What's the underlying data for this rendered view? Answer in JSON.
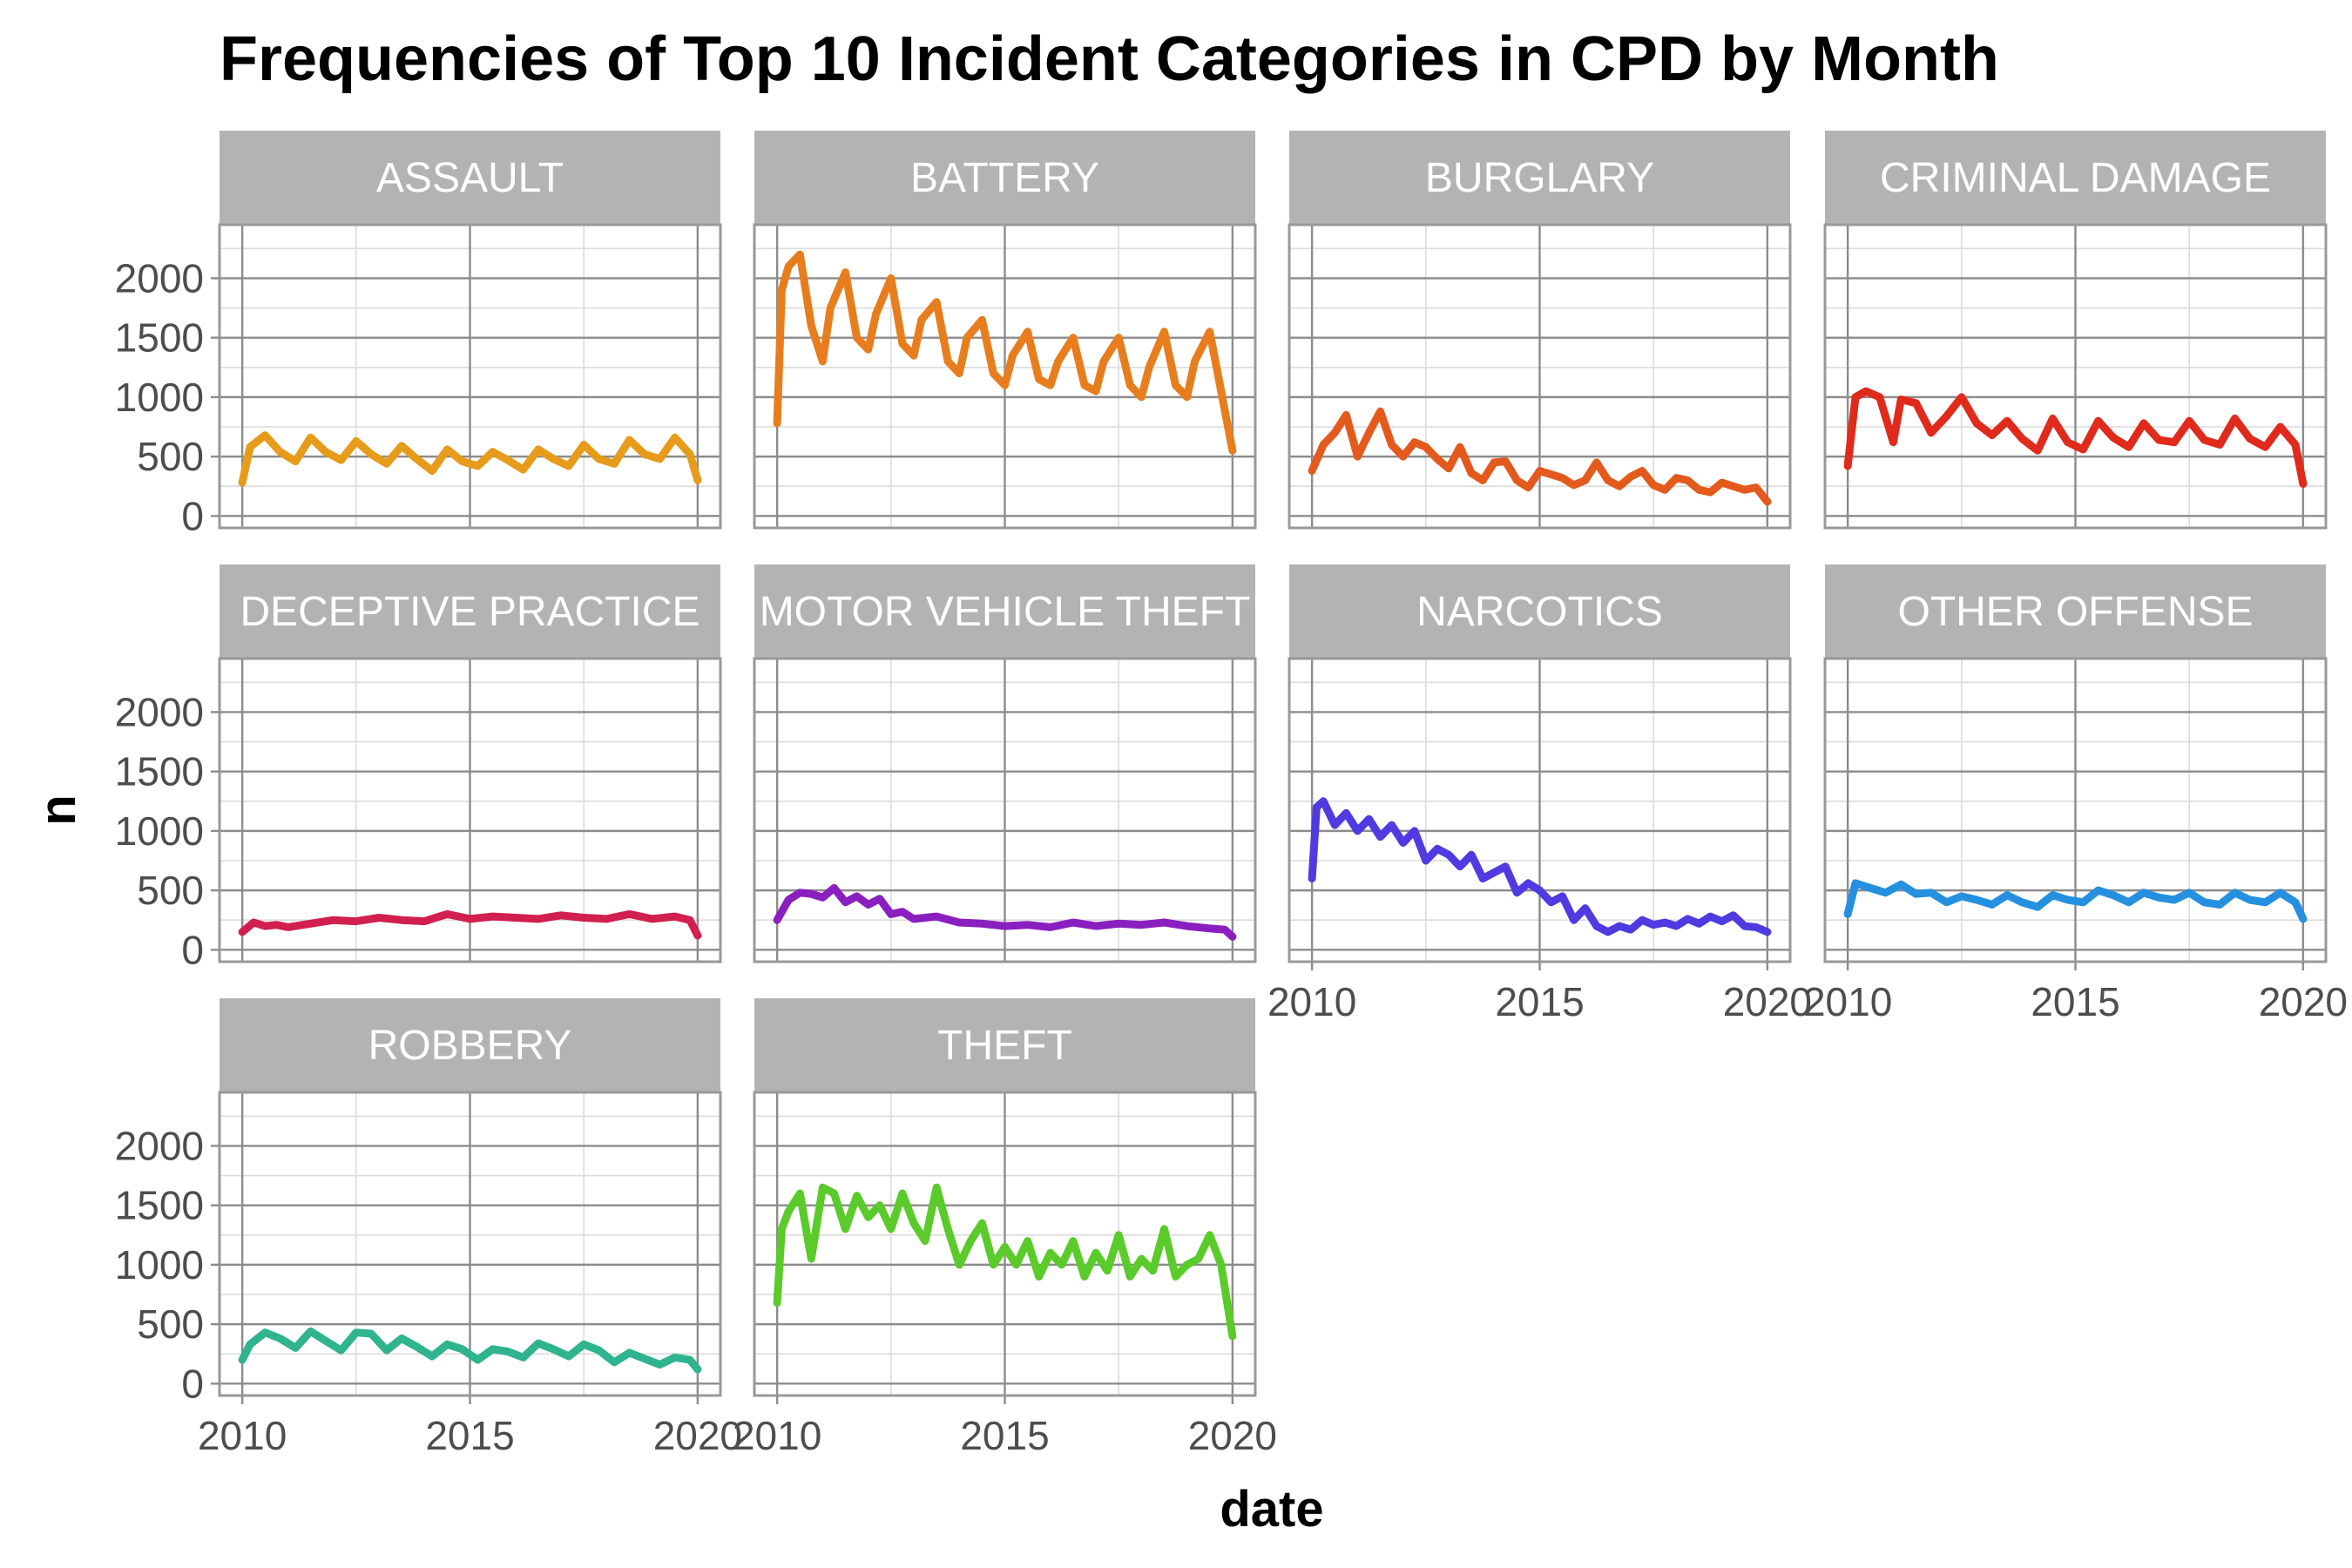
{
  "chart_data": {
    "type": "line",
    "title": "Frequencies of Top 10 Incident Categories in CPD by Month",
    "xlabel": "date",
    "ylabel": "n",
    "xlim": [
      2009.5,
      2020.5
    ],
    "ylim": [
      -100,
      2450
    ],
    "x_ticks": [
      2010,
      2015,
      2020
    ],
    "y_ticks": [
      0,
      500,
      1000,
      1500,
      2000
    ],
    "grid": true,
    "legend": "none",
    "panels": [
      {
        "name": "ASSAULT",
        "color": "#E69B1A",
        "x": [
          2010.0,
          2010.17,
          2010.5,
          2010.83,
          2011.17,
          2011.5,
          2011.83,
          2012.17,
          2012.5,
          2012.83,
          2013.17,
          2013.5,
          2013.83,
          2014.17,
          2014.5,
          2014.83,
          2015.17,
          2015.5,
          2015.83,
          2016.17,
          2016.5,
          2016.83,
          2017.17,
          2017.5,
          2017.83,
          2018.17,
          2018.5,
          2018.83,
          2019.17,
          2019.5,
          2019.83,
          2020.0
        ],
        "y": [
          280,
          580,
          680,
          540,
          460,
          660,
          540,
          470,
          630,
          520,
          440,
          590,
          480,
          380,
          560,
          460,
          420,
          540,
          470,
          390,
          560,
          480,
          420,
          600,
          480,
          440,
          640,
          520,
          480,
          660,
          520,
          300
        ]
      },
      {
        "name": "BATTERY",
        "color": "#E87D1E",
        "x": [
          2010.0,
          2010.1,
          2010.25,
          2010.5,
          2010.75,
          2011.0,
          2011.17,
          2011.5,
          2011.75,
          2012.0,
          2012.17,
          2012.5,
          2012.75,
          2013.0,
          2013.17,
          2013.5,
          2013.75,
          2014.0,
          2014.17,
          2014.5,
          2014.75,
          2015.0,
          2015.17,
          2015.5,
          2015.75,
          2016.0,
          2016.17,
          2016.5,
          2016.75,
          2017.0,
          2017.17,
          2017.5,
          2017.75,
          2018.0,
          2018.17,
          2018.5,
          2018.75,
          2019.0,
          2019.17,
          2019.5,
          2019.75,
          2020.0
        ],
        "y": [
          780,
          1900,
          2100,
          2200,
          1600,
          1300,
          1750,
          2050,
          1500,
          1400,
          1700,
          2000,
          1450,
          1350,
          1650,
          1800,
          1300,
          1200,
          1500,
          1650,
          1200,
          1100,
          1350,
          1550,
          1150,
          1100,
          1300,
          1500,
          1100,
          1050,
          1300,
          1500,
          1100,
          1000,
          1250,
          1550,
          1100,
          1000,
          1300,
          1550,
          1050,
          550
        ]
      },
      {
        "name": "BURGLARY",
        "color": "#E35A1C",
        "x": [
          2010.0,
          2010.25,
          2010.5,
          2010.75,
          2011.0,
          2011.25,
          2011.5,
          2011.75,
          2012.0,
          2012.25,
          2012.5,
          2012.75,
          2013.0,
          2013.25,
          2013.5,
          2013.75,
          2014.0,
          2014.25,
          2014.5,
          2014.75,
          2015.0,
          2015.25,
          2015.5,
          2015.75,
          2016.0,
          2016.25,
          2016.5,
          2016.75,
          2017.0,
          2017.25,
          2017.5,
          2017.75,
          2018.0,
          2018.25,
          2018.5,
          2018.75,
          2019.0,
          2019.25,
          2019.5,
          2019.75,
          2020.0
        ],
        "y": [
          380,
          600,
          700,
          850,
          500,
          700,
          880,
          600,
          500,
          620,
          580,
          480,
          400,
          580,
          360,
          300,
          450,
          460,
          300,
          240,
          380,
          350,
          320,
          260,
          300,
          450,
          300,
          250,
          330,
          380,
          260,
          220,
          320,
          300,
          220,
          200,
          280,
          250,
          220,
          240,
          120
        ]
      },
      {
        "name": "CRIMINAL DAMAGE",
        "color": "#E02A1C",
        "x": [
          2010.0,
          2010.17,
          2010.4,
          2010.7,
          2011.0,
          2011.17,
          2011.5,
          2011.83,
          2012.17,
          2012.5,
          2012.83,
          2013.17,
          2013.5,
          2013.83,
          2014.17,
          2014.5,
          2014.83,
          2015.17,
          2015.5,
          2015.83,
          2016.17,
          2016.5,
          2016.83,
          2017.17,
          2017.5,
          2017.83,
          2018.17,
          2018.5,
          2018.83,
          2019.17,
          2019.5,
          2019.83,
          2020.0
        ],
        "y": [
          420,
          1000,
          1050,
          1000,
          620,
          980,
          950,
          700,
          840,
          1000,
          780,
          680,
          800,
          650,
          550,
          820,
          620,
          560,
          800,
          660,
          580,
          780,
          640,
          620,
          800,
          640,
          600,
          820,
          650,
          580,
          750,
          600,
          270
        ]
      },
      {
        "name": "DECEPTIVE PRACTICE",
        "color": "#D11F4F",
        "x": [
          2010.0,
          2010.25,
          2010.5,
          2010.75,
          2011.0,
          2011.5,
          2012.0,
          2012.5,
          2013.0,
          2013.5,
          2014.0,
          2014.5,
          2015.0,
          2015.5,
          2016.0,
          2016.5,
          2017.0,
          2017.5,
          2018.0,
          2018.5,
          2019.0,
          2019.5,
          2019.83,
          2020.0
        ],
        "y": [
          150,
          230,
          200,
          210,
          190,
          220,
          250,
          240,
          270,
          250,
          240,
          300,
          260,
          280,
          270,
          260,
          290,
          270,
          260,
          300,
          260,
          280,
          250,
          120
        ]
      },
      {
        "name": "MOTOR VEHICLE THEFT",
        "color": "#8A1FBF",
        "x": [
          2010.0,
          2010.25,
          2010.5,
          2010.75,
          2011.0,
          2011.25,
          2011.5,
          2011.75,
          2012.0,
          2012.25,
          2012.5,
          2012.75,
          2013.0,
          2013.5,
          2014.0,
          2014.5,
          2015.0,
          2015.5,
          2016.0,
          2016.5,
          2017.0,
          2017.5,
          2018.0,
          2018.5,
          2019.0,
          2019.5,
          2019.83,
          2020.0
        ],
        "y": [
          250,
          420,
          480,
          470,
          440,
          520,
          400,
          450,
          380,
          430,
          300,
          320,
          260,
          280,
          230,
          220,
          200,
          210,
          190,
          230,
          200,
          220,
          210,
          230,
          200,
          180,
          170,
          110
        ]
      },
      {
        "name": "NARCOTICS",
        "color": "#4F3BE0",
        "x": [
          2010.0,
          2010.1,
          2010.25,
          2010.5,
          2010.75,
          2011.0,
          2011.25,
          2011.5,
          2011.75,
          2012.0,
          2012.25,
          2012.5,
          2012.75,
          2013.0,
          2013.25,
          2013.5,
          2013.75,
          2014.0,
          2014.25,
          2014.5,
          2014.75,
          2015.0,
          2015.25,
          2015.5,
          2015.75,
          2016.0,
          2016.25,
          2016.5,
          2016.75,
          2017.0,
          2017.25,
          2017.5,
          2017.75,
          2018.0,
          2018.25,
          2018.5,
          2018.75,
          2019.0,
          2019.25,
          2019.5,
          2019.75,
          2020.0
        ],
        "y": [
          600,
          1200,
          1250,
          1050,
          1150,
          1000,
          1100,
          950,
          1050,
          900,
          1000,
          750,
          850,
          800,
          700,
          800,
          600,
          650,
          700,
          480,
          560,
          500,
          400,
          450,
          250,
          350,
          200,
          150,
          200,
          170,
          250,
          210,
          230,
          200,
          260,
          220,
          280,
          240,
          290,
          200,
          190,
          150
        ]
      },
      {
        "name": "OTHER OFFENSE",
        "color": "#2690E0",
        "x": [
          2010.0,
          2010.17,
          2010.5,
          2010.83,
          2011.17,
          2011.5,
          2011.83,
          2012.17,
          2012.5,
          2012.83,
          2013.17,
          2013.5,
          2013.83,
          2014.17,
          2014.5,
          2014.83,
          2015.17,
          2015.5,
          2015.83,
          2016.17,
          2016.5,
          2016.83,
          2017.17,
          2017.5,
          2017.83,
          2018.17,
          2018.5,
          2018.83,
          2019.17,
          2019.5,
          2019.83,
          2020.0
        ],
        "y": [
          300,
          560,
          520,
          480,
          550,
          470,
          480,
          400,
          450,
          420,
          380,
          460,
          400,
          360,
          460,
          420,
          400,
          500,
          460,
          400,
          480,
          440,
          420,
          480,
          400,
          380,
          480,
          420,
          400,
          480,
          400,
          260
        ]
      },
      {
        "name": "ROBBERY",
        "color": "#2FB48F",
        "x": [
          2010.0,
          2010.17,
          2010.5,
          2010.83,
          2011.17,
          2011.5,
          2011.83,
          2012.17,
          2012.5,
          2012.83,
          2013.17,
          2013.5,
          2013.83,
          2014.17,
          2014.5,
          2014.83,
          2015.17,
          2015.5,
          2015.83,
          2016.17,
          2016.5,
          2016.83,
          2017.17,
          2017.5,
          2017.83,
          2018.17,
          2018.5,
          2018.83,
          2019.17,
          2019.5,
          2019.83,
          2020.0
        ],
        "y": [
          200,
          330,
          430,
          380,
          300,
          440,
          360,
          280,
          430,
          420,
          280,
          380,
          310,
          230,
          330,
          290,
          200,
          290,
          270,
          220,
          340,
          290,
          230,
          330,
          280,
          180,
          260,
          210,
          160,
          220,
          200,
          120
        ]
      },
      {
        "name": "THEFT",
        "color": "#5ACB2A",
        "x": [
          2010.0,
          2010.1,
          2010.25,
          2010.5,
          2010.75,
          2011.0,
          2011.25,
          2011.5,
          2011.75,
          2012.0,
          2012.25,
          2012.5,
          2012.75,
          2013.0,
          2013.25,
          2013.5,
          2013.75,
          2014.0,
          2014.25,
          2014.5,
          2014.75,
          2015.0,
          2015.25,
          2015.5,
          2015.75,
          2016.0,
          2016.25,
          2016.5,
          2016.75,
          2017.0,
          2017.25,
          2017.5,
          2017.75,
          2018.0,
          2018.25,
          2018.5,
          2018.75,
          2019.0,
          2019.25,
          2019.5,
          2019.75,
          2020.0
        ],
        "y": [
          680,
          1300,
          1450,
          1600,
          1050,
          1650,
          1600,
          1300,
          1580,
          1400,
          1500,
          1300,
          1600,
          1350,
          1200,
          1650,
          1300,
          1000,
          1200,
          1350,
          1000,
          1150,
          1000,
          1200,
          900,
          1100,
          1000,
          1200,
          900,
          1100,
          950,
          1250,
          900,
          1050,
          950,
          1300,
          900,
          1000,
          1050,
          1250,
          1000,
          400
        ]
      }
    ]
  }
}
